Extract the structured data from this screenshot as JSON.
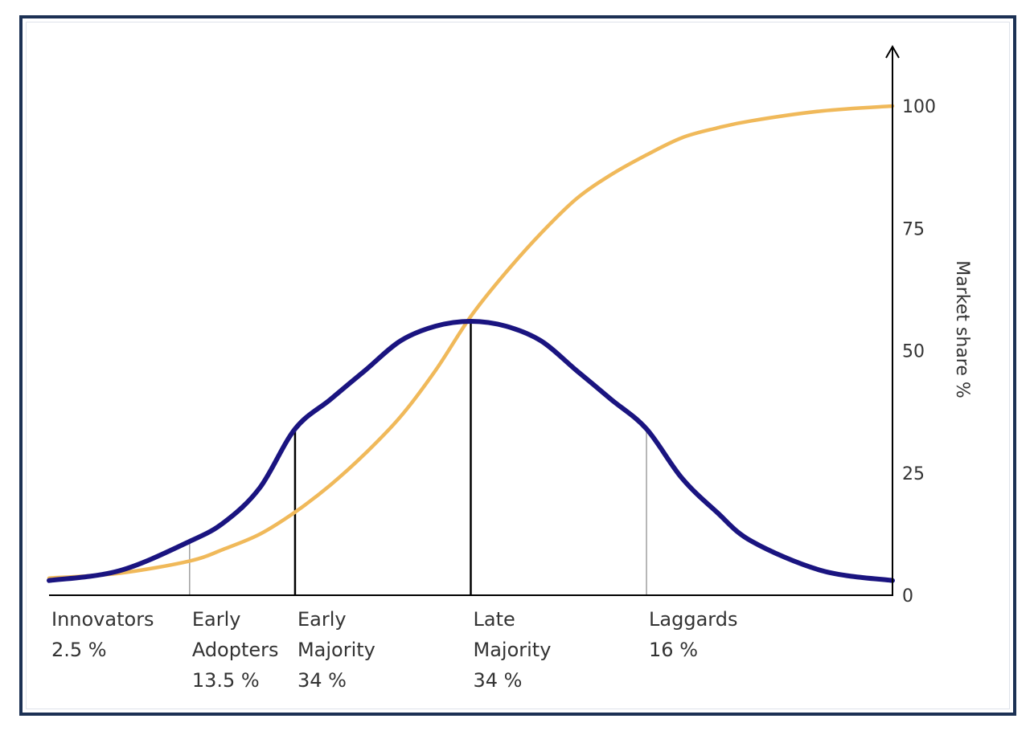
{
  "chart_data": {
    "type": "line",
    "title": "",
    "xlabel": "",
    "ylabel": "Market share %",
    "y_axis_position": "right",
    "ylim": [
      0,
      100
    ],
    "y_ticks": [
      0,
      25,
      50,
      75,
      100
    ],
    "x_range": [
      -2.4,
      2.4
    ],
    "series": [
      {
        "kind": "bell",
        "color": "#1a1480",
        "x": [
          -2.4,
          -2.0,
          -1.6,
          -1.4,
          -1.2,
          -1.0,
          -0.8,
          -0.6,
          -0.4,
          -0.2,
          0.0,
          0.2,
          0.4,
          0.6,
          0.8,
          1.0,
          1.2,
          1.4,
          1.6,
          2.0,
          2.4
        ],
        "y": [
          3,
          5,
          11,
          15,
          22,
          34,
          40,
          46,
          52,
          55,
          56,
          55,
          52,
          46,
          40,
          34,
          24,
          17,
          11,
          5,
          3
        ]
      },
      {
        "kind": "s-curve",
        "color": "#f0b95a",
        "x": [
          -2.4,
          -2.0,
          -1.6,
          -1.4,
          -1.2,
          -1.0,
          -0.8,
          -0.6,
          -0.4,
          -0.2,
          0.0,
          0.2,
          0.4,
          0.6,
          0.8,
          1.0,
          1.2,
          1.4,
          1.6,
          2.0,
          2.4
        ],
        "y": [
          3.5,
          4.5,
          7,
          9.5,
          12.5,
          17,
          22.5,
          29,
          36.5,
          46,
          57,
          66,
          74,
          81,
          86,
          90,
          93.5,
          95.5,
          97,
          99,
          100
        ]
      }
    ],
    "dividers": [
      {
        "x": -1.6,
        "emphasis": "thin"
      },
      {
        "x": -1.0,
        "emphasis": "bold"
      },
      {
        "x": 0.0,
        "emphasis": "bold"
      },
      {
        "x": 1.0,
        "emphasis": "thin"
      }
    ],
    "segments": [
      {
        "x": -2.4,
        "lines": [
          "Innovators",
          "2.5 %"
        ]
      },
      {
        "x": -1.6,
        "lines": [
          "Early",
          "Adopters",
          "13.5 %"
        ]
      },
      {
        "x": -1.0,
        "lines": [
          "Early",
          "Majority",
          "34 %"
        ]
      },
      {
        "x": 0.0,
        "lines": [
          "Late",
          "Majority",
          "34 %"
        ]
      },
      {
        "x": 1.0,
        "lines": [
          "Laggards",
          "16 %"
        ]
      }
    ],
    "grid": false,
    "legend": "none"
  },
  "colors": {
    "frame": "#1c3154",
    "axis": "#000000",
    "divider_bold": "#000000",
    "divider_thin": "#888888"
  }
}
